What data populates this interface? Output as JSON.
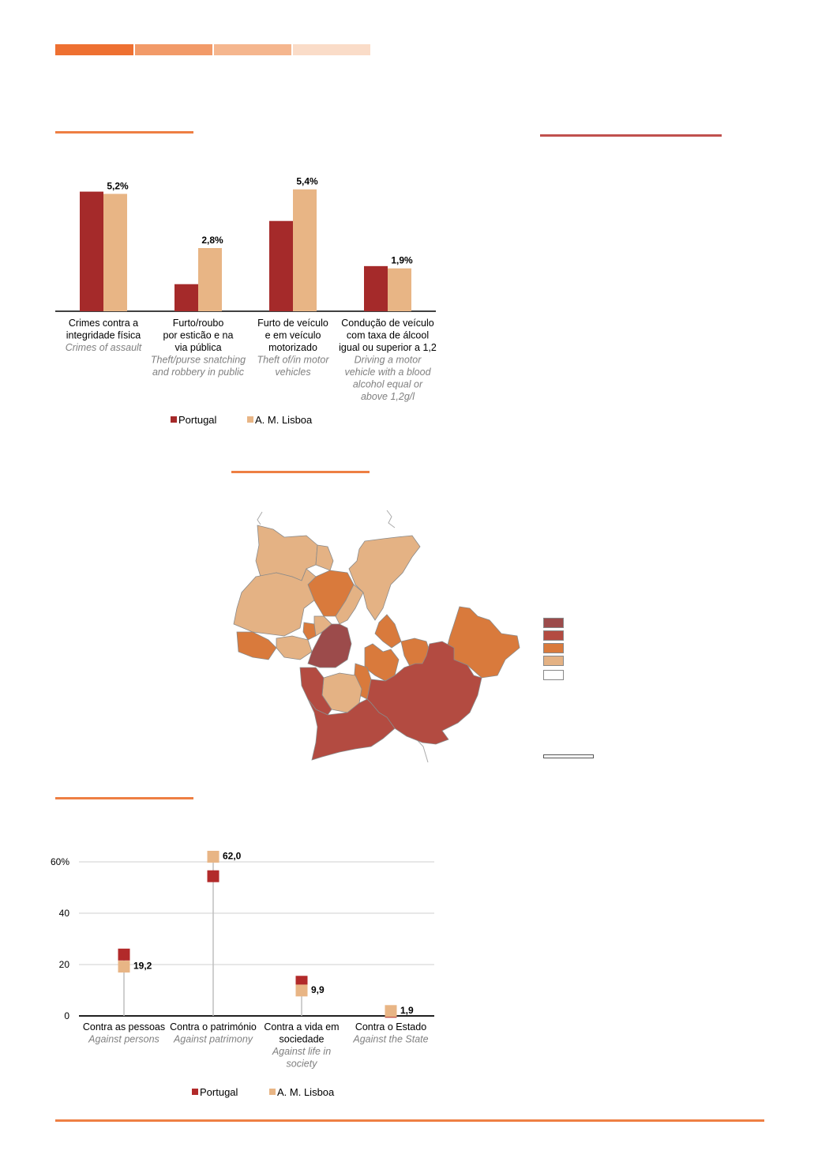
{
  "header_colors": [
    "#ee7031",
    "#f29a68",
    "#f5b68e",
    "#fadcc8"
  ],
  "accent_line": "#ee7f43",
  "accent_line_red": "#c0504d",
  "chart_data": [
    {
      "type": "bar",
      "categories": [
        {
          "pt": [
            "Crimes contra a",
            "integridade física"
          ],
          "en": [
            "Crimes of assault"
          ]
        },
        {
          "pt": [
            "Furto/roubo",
            "por esticão e na",
            "via pública"
          ],
          "en": [
            "Theft/purse snatching",
            "and robbery in public"
          ]
        },
        {
          "pt": [
            "Furto de veículo",
            "e em veículo",
            "motorizado"
          ],
          "en": [
            "Theft of/in motor",
            "vehicles"
          ]
        },
        {
          "pt": [
            "Condução de veículo",
            "com taxa de álcool",
            "igual ou superior a 1,2"
          ],
          "en": [
            "Driving a motor",
            "vehicle with a blood",
            "alcohol equal or",
            "above 1,2g/l"
          ]
        }
      ],
      "series": [
        {
          "name": "Portugal",
          "color": "#a52a2a",
          "values": [
            5.3,
            1.2,
            4.0,
            2.0
          ]
        },
        {
          "name": "A. M. Lisboa",
          "color": "#e8b585",
          "values": [
            5.2,
            2.8,
            5.4,
            1.9
          ]
        }
      ],
      "data_labels": [
        "5,2%",
        "2,8%",
        "5,4%",
        "1,9%"
      ],
      "ylim": [
        0,
        5.6
      ],
      "legend_position": "bottom"
    },
    {
      "type": "scatter",
      "categories": [
        {
          "pt": [
            "Contra as pessoas"
          ],
          "en": [
            "Against persons"
          ]
        },
        {
          "pt": [
            "Contra o património"
          ],
          "en": [
            "Against patrimony"
          ]
        },
        {
          "pt": [
            "Contra a vida em",
            "sociedade"
          ],
          "en": [
            "Against life in",
            "society"
          ]
        },
        {
          "pt": [
            "Contra o Estado"
          ],
          "en": [
            "Against the State"
          ]
        }
      ],
      "series": [
        {
          "name": "Portugal",
          "color": "#b22a2a",
          "values": [
            23.9,
            54.4,
            13.3,
            1.6
          ]
        },
        {
          "name": "A. M. Lisboa",
          "color": "#e8b585",
          "values": [
            19.2,
            62.0,
            9.9,
            1.9
          ]
        }
      ],
      "data_labels": [
        "19,2",
        "62,0",
        "9,9",
        "1,9"
      ],
      "yticks": [
        "0",
        "20",
        "40",
        "60%"
      ],
      "ylim": [
        0,
        60
      ],
      "grid": true,
      "legend_position": "bottom"
    }
  ],
  "map": {
    "legend_colors": [
      "#9c4b4b",
      "#b34b41",
      "#d97a3c",
      "#e4b284",
      "#ffffff"
    ],
    "region_colors": {
      "dark": "#9c4b4b",
      "red": "#b34b41",
      "orange": "#d97a3c",
      "light": "#e4b284"
    }
  }
}
